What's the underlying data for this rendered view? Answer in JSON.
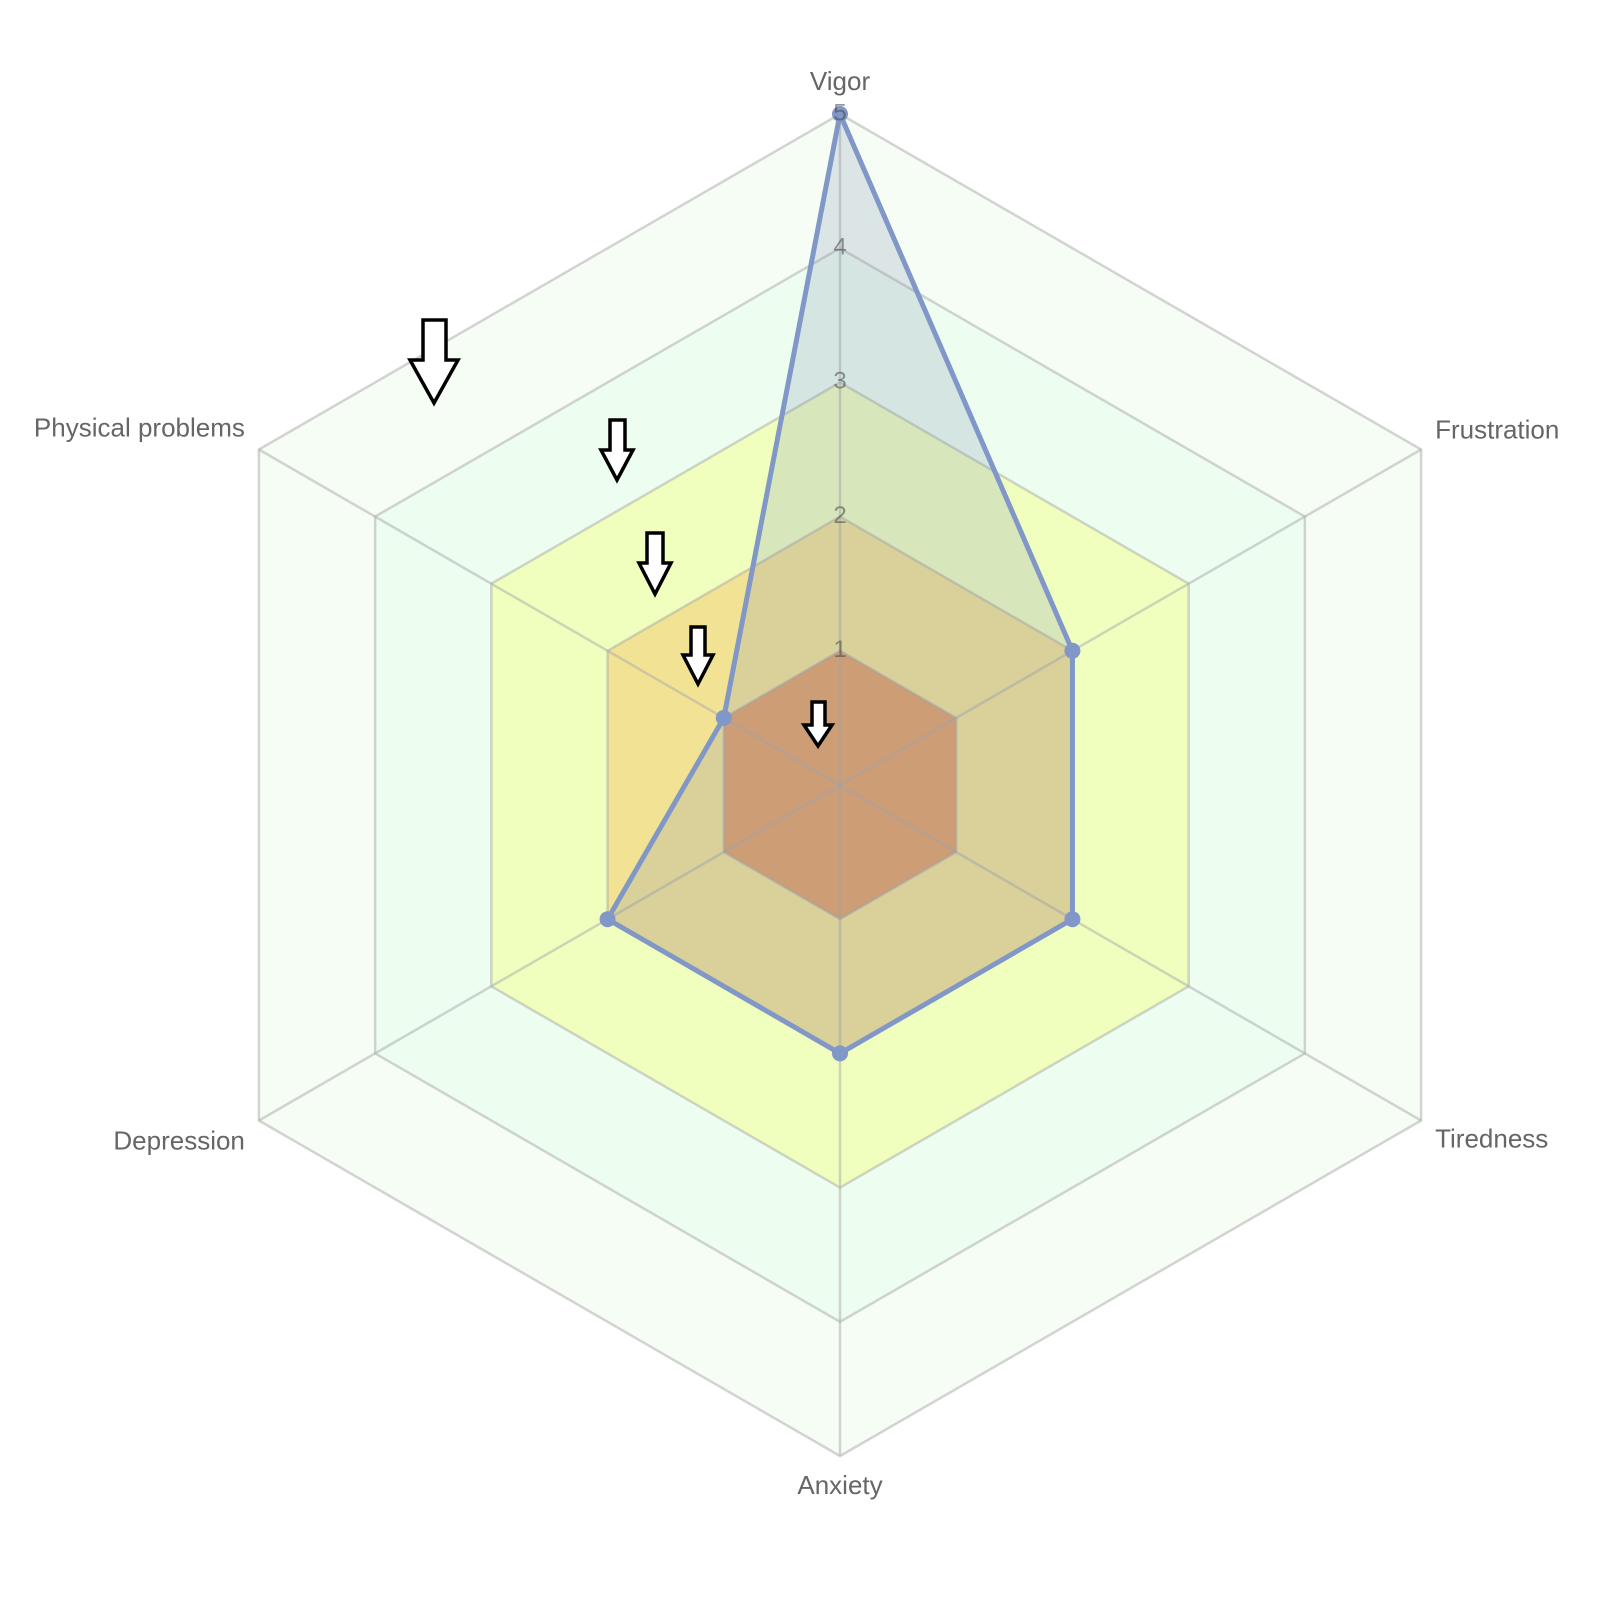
{
  "chart_data": {
    "type": "radar",
    "categories": [
      "Vigor",
      "Frustration",
      "Tiredness",
      "Anxiety",
      "Depression",
      "Physical problems"
    ],
    "values": [
      5,
      2,
      2,
      2,
      2,
      1
    ],
    "color": "#8097c8",
    "rlim": [
      0,
      5
    ],
    "rticks": [
      1,
      2,
      3,
      4,
      5
    ],
    "band_colors": [
      "#e3a066",
      "#f2e294",
      "#f1ffbe",
      "#edfdef",
      "#f6fdf4"
    ]
  }
}
